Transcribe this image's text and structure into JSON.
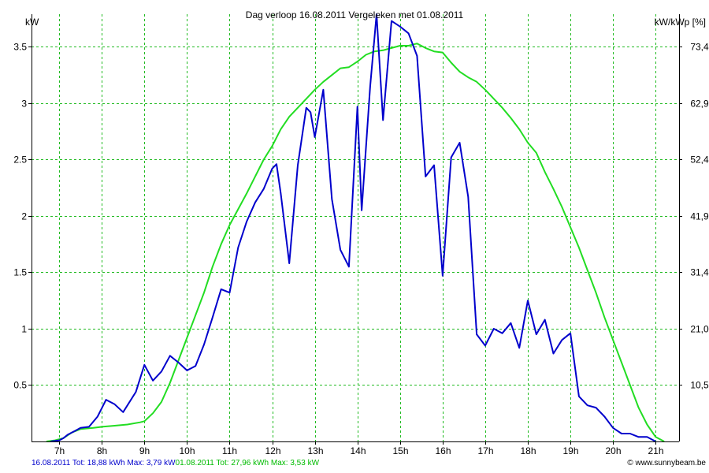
{
  "chart_data": {
    "type": "line",
    "title": "Dag  verloop 16.08.2011   Vergeleken met 01.08.2011",
    "ylabel_left": "kW",
    "ylabel_right": "kW/kWp [%]",
    "x_range_hours": [
      6.35,
      21.55
    ],
    "ylim": [
      0,
      3.79
    ],
    "grid": true,
    "x_ticks": [
      {
        "hour": 7,
        "label": "7h"
      },
      {
        "hour": 8,
        "label": "8h"
      },
      {
        "hour": 9,
        "label": "9h"
      },
      {
        "hour": 10,
        "label": "10h"
      },
      {
        "hour": 11,
        "label": "11h"
      },
      {
        "hour": 12,
        "label": "12h"
      },
      {
        "hour": 13,
        "label": "13h"
      },
      {
        "hour": 14,
        "label": "14h"
      },
      {
        "hour": 15,
        "label": "15h"
      },
      {
        "hour": 16,
        "label": "16h"
      },
      {
        "hour": 17,
        "label": "17h"
      },
      {
        "hour": 18,
        "label": "18h"
      },
      {
        "hour": 19,
        "label": "19h"
      },
      {
        "hour": 20,
        "label": "20h"
      },
      {
        "hour": 21,
        "label": "21h"
      }
    ],
    "y_ticks_left": [
      {
        "value": 0.5,
        "label": "0.5"
      },
      {
        "value": 1,
        "label": "1"
      },
      {
        "value": 1.5,
        "label": "1.5"
      },
      {
        "value": 2,
        "label": "2"
      },
      {
        "value": 2.5,
        "label": "2.5"
      },
      {
        "value": 3,
        "label": "3"
      },
      {
        "value": 3.5,
        "label": "3.5"
      }
    ],
    "y_ticks_right": [
      {
        "value": 0.5,
        "label": "10,5"
      },
      {
        "value": 1,
        "label": "21,0"
      },
      {
        "value": 1.5,
        "label": "31,4"
      },
      {
        "value": 2,
        "label": "41,9"
      },
      {
        "value": 2.5,
        "label": "52,4"
      },
      {
        "value": 3,
        "label": "62,9"
      },
      {
        "value": 3.5,
        "label": "73,4"
      }
    ],
    "series": [
      {
        "name": "01.08.2011",
        "color": "#22dd22",
        "x": [
          6.7,
          6.9,
          7.1,
          7.3,
          7.5,
          7.8,
          8.0,
          8.3,
          8.6,
          8.9,
          9.0,
          9.2,
          9.4,
          9.6,
          9.8,
          10.0,
          10.2,
          10.4,
          10.6,
          10.8,
          11.0,
          11.2,
          11.4,
          11.6,
          11.8,
          12.0,
          12.2,
          12.4,
          12.6,
          12.8,
          13.0,
          13.2,
          13.4,
          13.6,
          13.8,
          14.0,
          14.2,
          14.4,
          14.6,
          14.8,
          15.0,
          15.2,
          15.4,
          15.6,
          15.8,
          16.0,
          16.2,
          16.4,
          16.6,
          16.8,
          17.0,
          17.2,
          17.4,
          17.6,
          17.8,
          18.0,
          18.2,
          18.4,
          18.6,
          18.8,
          19.0,
          19.2,
          19.4,
          19.6,
          19.8,
          20.0,
          20.2,
          20.4,
          20.6,
          20.8,
          21.0,
          21.2
        ],
        "values": [
          0,
          0.01,
          0.03,
          0.08,
          0.11,
          0.12,
          0.13,
          0.14,
          0.15,
          0.17,
          0.18,
          0.25,
          0.35,
          0.52,
          0.72,
          0.92,
          1.12,
          1.32,
          1.55,
          1.75,
          1.92,
          2.06,
          2.2,
          2.35,
          2.5,
          2.62,
          2.77,
          2.88,
          2.96,
          3.04,
          3.12,
          3.19,
          3.25,
          3.31,
          3.32,
          3.37,
          3.43,
          3.46,
          3.47,
          3.49,
          3.51,
          3.51,
          3.53,
          3.49,
          3.46,
          3.45,
          3.36,
          3.28,
          3.23,
          3.19,
          3.12,
          3.04,
          2.96,
          2.87,
          2.77,
          2.65,
          2.56,
          2.39,
          2.24,
          2.08,
          1.9,
          1.72,
          1.52,
          1.32,
          1.1,
          0.9,
          0.7,
          0.5,
          0.3,
          0.15,
          0.04,
          0
        ]
      },
      {
        "name": "16.08.2011",
        "color": "#0000cc",
        "x": [
          6.8,
          7.0,
          7.1,
          7.2,
          7.4,
          7.5,
          7.7,
          7.9,
          8.1,
          8.3,
          8.5,
          8.8,
          9.0,
          9.2,
          9.4,
          9.6,
          9.8,
          10.0,
          10.2,
          10.4,
          10.6,
          10.8,
          11.0,
          11.2,
          11.4,
          11.6,
          11.8,
          12.0,
          12.1,
          12.2,
          12.4,
          12.6,
          12.8,
          12.9,
          13.0,
          13.2,
          13.4,
          13.6,
          13.8,
          14.0,
          14.1,
          14.3,
          14.45,
          14.6,
          14.8,
          15.0,
          15.2,
          15.4,
          15.6,
          15.8,
          16.0,
          16.2,
          16.4,
          16.6,
          16.8,
          17.0,
          17.2,
          17.4,
          17.6,
          17.8,
          18.0,
          18.2,
          18.4,
          18.6,
          18.8,
          19.0,
          19.2,
          19.4,
          19.6,
          19.8,
          20.0,
          20.2,
          20.4,
          20.6,
          20.8,
          21.0
        ],
        "values": [
          0,
          0.01,
          0.03,
          0.06,
          0.1,
          0.12,
          0.13,
          0.22,
          0.37,
          0.33,
          0.26,
          0.44,
          0.68,
          0.54,
          0.62,
          0.76,
          0.7,
          0.63,
          0.67,
          0.86,
          1.1,
          1.35,
          1.32,
          1.72,
          1.95,
          2.12,
          2.24,
          2.42,
          2.46,
          2.2,
          1.58,
          2.45,
          2.96,
          2.92,
          2.7,
          3.12,
          2.15,
          1.7,
          1.55,
          2.97,
          2.05,
          3.15,
          3.79,
          2.85,
          3.73,
          3.68,
          3.62,
          3.42,
          2.35,
          2.45,
          1.47,
          2.52,
          2.65,
          2.17,
          0.95,
          0.85,
          1.0,
          0.96,
          1.05,
          0.83,
          1.25,
          0.95,
          1.08,
          0.78,
          0.9,
          0.96,
          0.4,
          0.32,
          0.3,
          0.22,
          0.12,
          0.07,
          0.07,
          0.04,
          0.04,
          0
        ]
      }
    ]
  },
  "footer": {
    "left_segment_1": "16.08.2011 Tot: 18,88 kWh Max: 3,79 kW",
    "left_segment_2": "01.08.2011 Tot: 27,96 kWh Max: 3,53 kW",
    "credit": "© www.sunnybeam.be",
    "colors": {
      "segment_1": "#0000cc",
      "segment_2": "#00bb00",
      "credit": "#000000"
    }
  }
}
